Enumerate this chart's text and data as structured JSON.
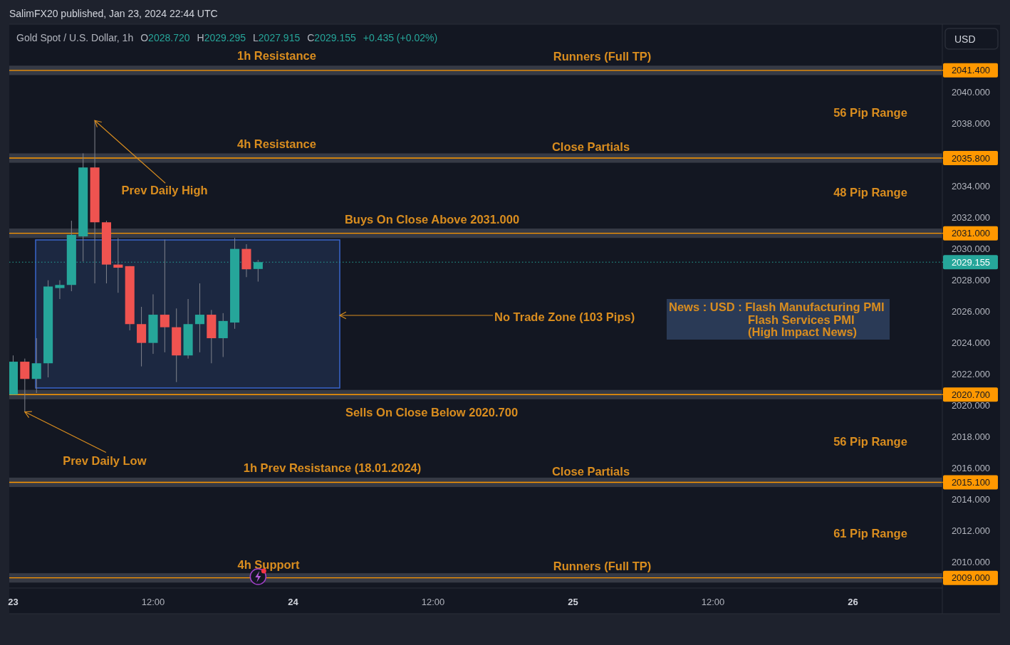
{
  "chart_data": {
    "type": "candlestick",
    "title": "SalimFX20 published, Jan 23, 2024 22:44 UTC",
    "subtitle": "Gold Spot / U.S. Dollar, 1h  O2028.720  H2029.295  L2027.915  C2029.155  +0.435 (+0.02%)",
    "ylabel": "USD",
    "x": [
      "2024-01-23T00:00",
      "2024-01-23T01:00",
      "2024-01-23T02:00",
      "2024-01-23T03:00",
      "2024-01-23T04:00",
      "2024-01-23T05:00",
      "2024-01-23T06:00",
      "2024-01-23T07:00",
      "2024-01-23T08:00",
      "2024-01-23T09:00",
      "2024-01-23T10:00",
      "2024-01-23T11:00",
      "2024-01-23T12:00",
      "2024-01-23T13:00",
      "2024-01-23T14:00",
      "2024-01-23T15:00",
      "2024-01-23T16:00",
      "2024-01-23T17:00",
      "2024-01-23T18:00",
      "2024-01-23T19:00",
      "2024-01-23T20:00",
      "2024-01-23T21:00"
    ],
    "ohlc": [
      [
        2020.7,
        2023.2,
        2020.7,
        2022.8
      ],
      [
        2022.8,
        2023.0,
        2019.6,
        2021.7
      ],
      [
        2021.7,
        2024.3,
        2020.8,
        2022.7
      ],
      [
        2022.7,
        2028.0,
        2021.8,
        2027.6
      ],
      [
        2027.5,
        2028.0,
        2026.8,
        2027.7
      ],
      [
        2027.7,
        2031.8,
        2027.3,
        2030.9
      ],
      [
        2030.8,
        2036.1,
        2029.2,
        2035.2
      ],
      [
        2035.2,
        2038.2,
        2027.8,
        2031.7
      ],
      [
        2031.7,
        2031.8,
        2027.8,
        2029.0
      ],
      [
        2029.0,
        2030.7,
        2027.2,
        2028.8
      ],
      [
        2028.9,
        2028.9,
        2024.8,
        2025.2
      ],
      [
        2025.2,
        2026.3,
        2022.5,
        2024.0
      ],
      [
        2024.0,
        2027.1,
        2023.3,
        2025.8
      ],
      [
        2025.8,
        2030.6,
        2023.4,
        2025.0
      ],
      [
        2025.0,
        2026.2,
        2021.5,
        2023.2
      ],
      [
        2023.2,
        2026.8,
        2023.0,
        2025.2
      ],
      [
        2025.2,
        2027.8,
        2023.4,
        2025.8
      ],
      [
        2025.8,
        2026.1,
        2022.7,
        2024.3
      ],
      [
        2024.3,
        2025.9,
        2023.1,
        2025.4
      ],
      [
        2025.3,
        2030.7,
        2024.9,
        2030.0
      ],
      [
        2030.0,
        2030.3,
        2028.2,
        2028.7
      ],
      [
        2028.72,
        2029.295,
        2027.915,
        2029.155
      ]
    ],
    "colors": [
      "#26a69a",
      "#ef5350",
      "#26a69a",
      "#26a69a",
      "#26a69a",
      "#26a69a",
      "#26a69a",
      "#ef5350",
      "#ef5350",
      "#ef5350",
      "#ef5350",
      "#ef5350",
      "#26a69a",
      "#ef5350",
      "#ef5350",
      "#26a69a",
      "#26a69a",
      "#ef5350",
      "#26a69a",
      "#26a69a",
      "#ef5350",
      "#26a69a"
    ],
    "xlim": [
      "2024-01-22T23:40",
      "2024-01-26T07:40"
    ],
    "xticks": [
      {
        "value": "2024-01-23T00:00",
        "label": "23"
      },
      {
        "value": "2024-01-23T12:00",
        "label": "12:00"
      },
      {
        "value": "2024-01-24T00:00",
        "label": "24"
      },
      {
        "value": "2024-01-24T12:00",
        "label": "12:00"
      },
      {
        "value": "2024-01-25T00:00",
        "label": "25"
      },
      {
        "value": "2024-01-25T12:00",
        "label": "12:00"
      },
      {
        "value": "2024-01-26T00:00",
        "label": "26"
      }
    ],
    "ylim": [
      2008.35,
      2044.3
    ],
    "yticks": [
      {
        "value": 2010,
        "label": "2010.000"
      },
      {
        "value": 2012,
        "label": "2012.000"
      },
      {
        "value": 2014,
        "label": "2014.000"
      },
      {
        "value": 2016,
        "label": "2016.000"
      },
      {
        "value": 2018,
        "label": "2018.000"
      },
      {
        "value": 2020,
        "label": "2020.000"
      },
      {
        "value": 2022,
        "label": "2022.000"
      },
      {
        "value": 2024,
        "label": "2024.000"
      },
      {
        "value": 2026,
        "label": "2026.000"
      },
      {
        "value": 2028,
        "label": "2028.000"
      },
      {
        "value": 2030,
        "label": "2030.000"
      },
      {
        "value": 2032,
        "label": "2032.000"
      },
      {
        "value": 2034,
        "label": "2034.000"
      },
      {
        "value": 2038,
        "label": "2038.000"
      },
      {
        "value": 2040,
        "label": "2040.000"
      }
    ],
    "bands": [
      {
        "axis": "y",
        "from": 2041.1,
        "to": 2041.7,
        "color": "#363a45"
      },
      {
        "axis": "y",
        "from": 2035.5,
        "to": 2036.1,
        "color": "#363a45"
      },
      {
        "axis": "y",
        "from": 2030.7,
        "to": 2031.3,
        "color": "#363a45"
      },
      {
        "axis": "y",
        "from": 2020.4,
        "to": 2021.0,
        "color": "#363a45"
      },
      {
        "axis": "y",
        "from": 2014.8,
        "to": 2015.4,
        "color": "#363a45"
      },
      {
        "axis": "y",
        "from": 2008.7,
        "to": 2009.3,
        "color": "#363a45"
      }
    ],
    "ref_lines": [
      {
        "axis": "y",
        "value": 2041.4,
        "label": "2041.400",
        "color": "#ff9800"
      },
      {
        "axis": "y",
        "value": 2035.8,
        "label": "2035.800",
        "color": "#ff9800"
      },
      {
        "axis": "y",
        "value": 2031.0,
        "label": "2031.000",
        "color": "#ff9800"
      },
      {
        "axis": "y",
        "value": 2020.7,
        "label": "2020.700",
        "color": "#ff9800"
      },
      {
        "axis": "y",
        "value": 2015.1,
        "label": "2015.100",
        "color": "#ff9800"
      },
      {
        "axis": "y",
        "value": 2009.0,
        "label": "2009.000",
        "color": "#ff9800"
      },
      {
        "axis": "y",
        "value": 2029.155,
        "label": "2029.155",
        "color": "#26a69a",
        "line_style": "dotted"
      }
    ],
    "annotations": [
      "1h Resistance",
      "Runners (Full TP)",
      "56 Pip Range",
      "4h Resistance",
      "Close Partials",
      {
        "text": "Prev Daily High",
        "x": "2024-01-23T07:00",
        "y": 2038.2
      },
      "48 Pip Range",
      "Buys On Close Above 2031.000",
      "No Trade Zone (103 Pips)",
      "News : USD : Flash Manufacturing PMI\nFlash Services PMI\n(High Impact News)",
      "Sells On Close Below 2020.700",
      "56 Pip Range",
      {
        "text": "Prev Daily Low",
        "x": "2024-01-23T01:00",
        "y": 2019.6
      },
      "1h Prev Resistance (18.01.2024)",
      "Close Partials",
      "61 Pip Range",
      "4h Support",
      "Runners (Full TP)"
    ]
  }
}
